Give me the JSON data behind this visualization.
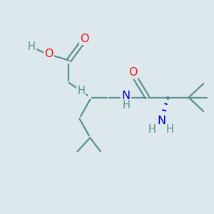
{
  "bg_color": "#dce8ec",
  "bond_color": "#5a9090",
  "o_color": "#ee1111",
  "n_color": "#0000cc",
  "h_color": "#5a9090",
  "bond_lw": 1.6,
  "font_size": 10.5,
  "xlim": [
    0,
    10
  ],
  "ylim": [
    0,
    10
  ]
}
